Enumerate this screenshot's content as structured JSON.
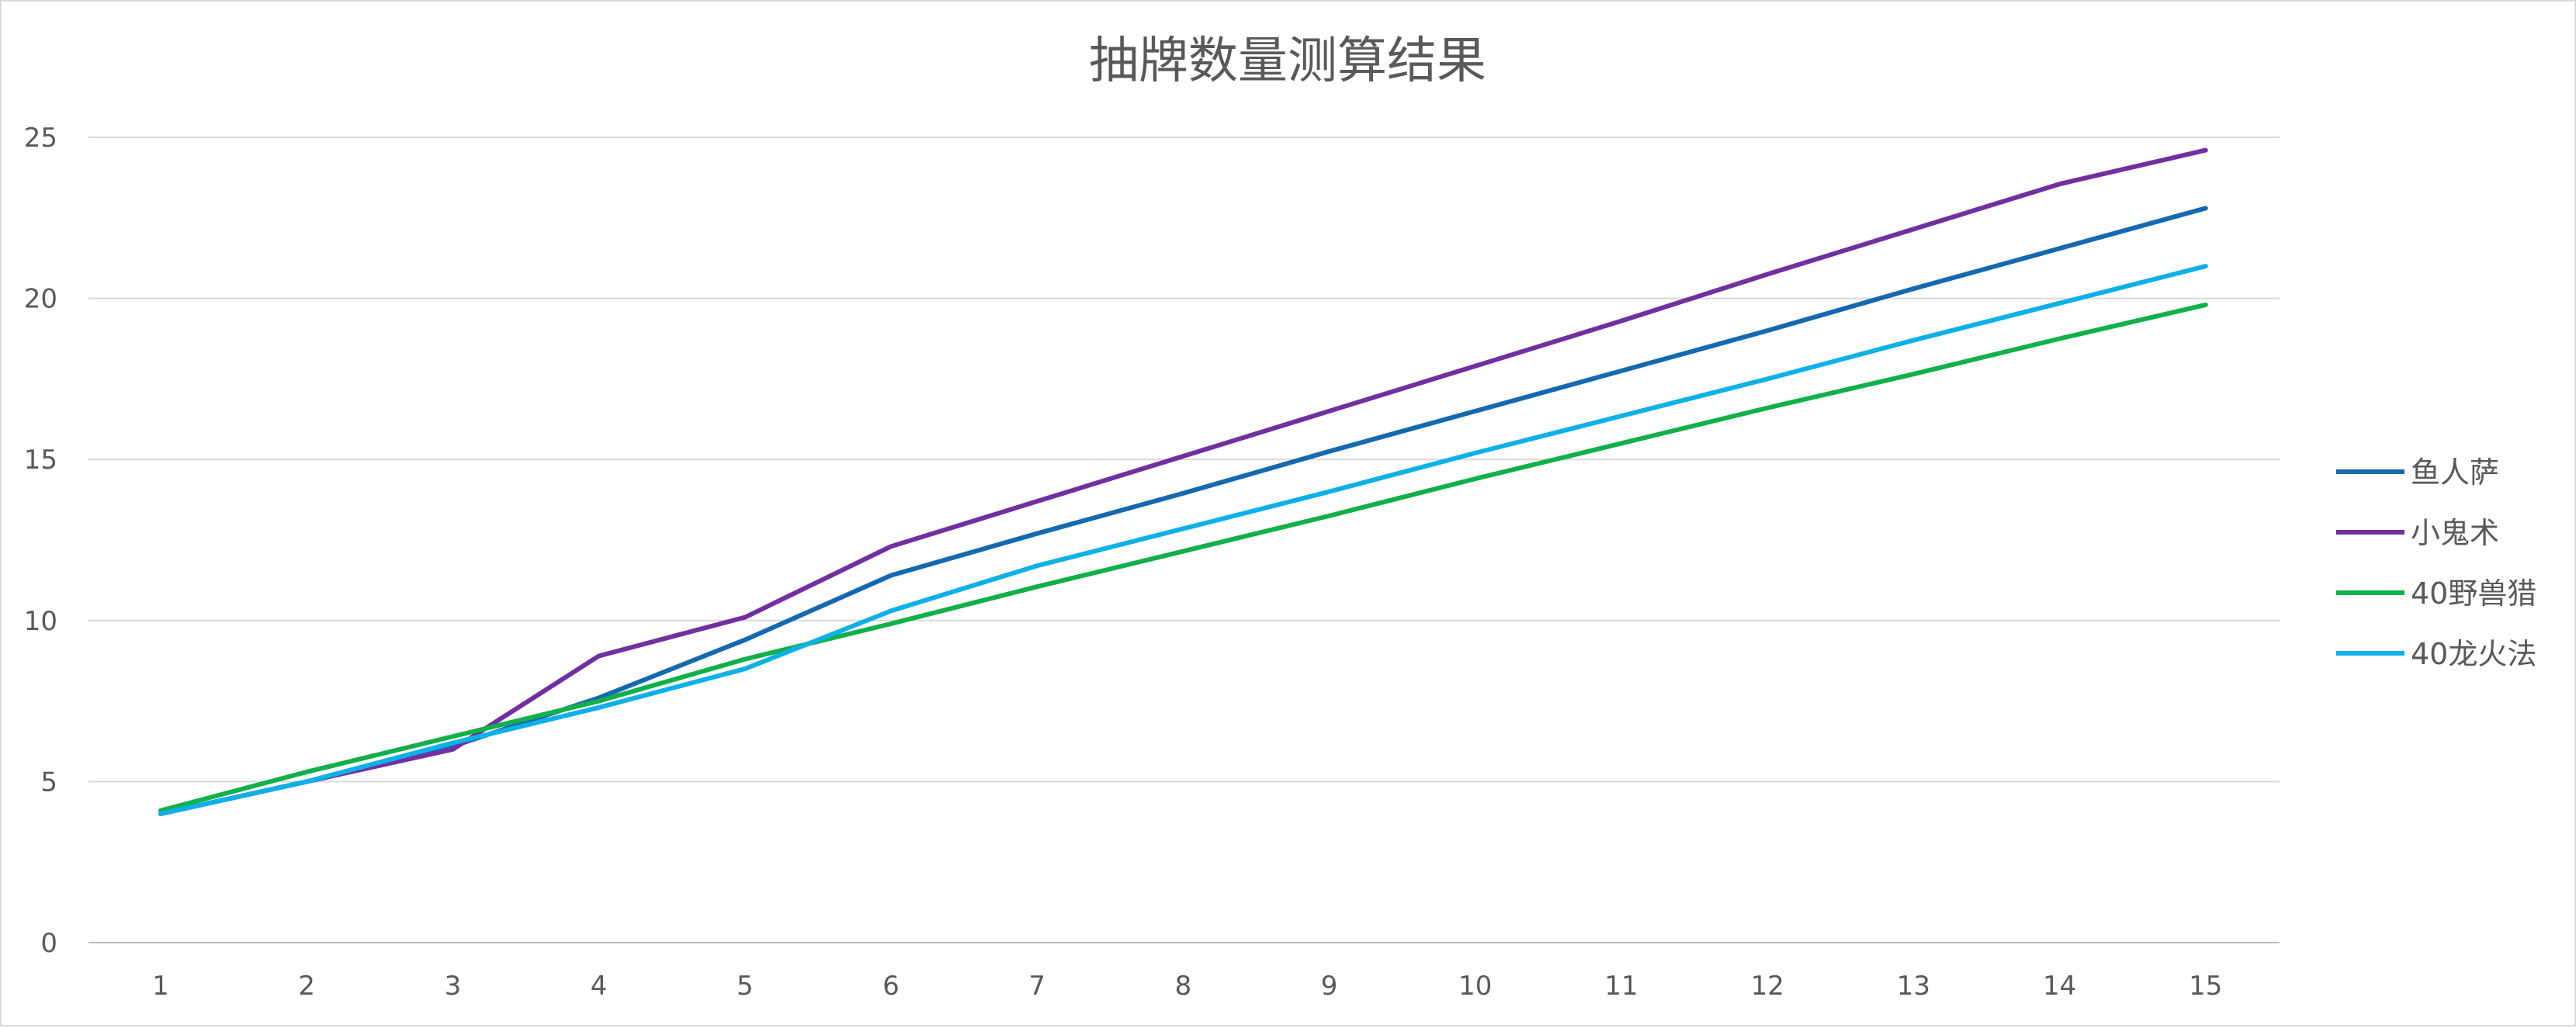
{
  "chart_data": {
    "type": "line",
    "title": "抽牌数量测算结果",
    "xlabel": "",
    "ylabel": "",
    "x": [
      1,
      2,
      3,
      4,
      5,
      6,
      7,
      8,
      9,
      10,
      11,
      12,
      13,
      14,
      15
    ],
    "ylim": [
      0,
      25
    ],
    "yticks": [
      0,
      5,
      10,
      15,
      20,
      25
    ],
    "grid": true,
    "legend_position": "right",
    "series": [
      {
        "name": "鱼人萨",
        "color": "#1469b0",
        "values": [
          4.0,
          5.0,
          6.1,
          7.6,
          9.4,
          11.4,
          12.7,
          13.95,
          15.25,
          16.5,
          17.75,
          19.0,
          20.3,
          21.55,
          22.8
        ]
      },
      {
        "name": "小鬼术",
        "color": "#7030a0",
        "values": [
          4.0,
          5.0,
          6.0,
          8.9,
          10.1,
          12.3,
          13.7,
          15.1,
          16.5,
          17.9,
          19.3,
          20.75,
          22.15,
          23.55,
          24.6
        ]
      },
      {
        "name": "40野兽猎",
        "color": "#12b04a",
        "values": [
          4.1,
          5.3,
          6.4,
          7.5,
          8.8,
          9.9,
          11.05,
          12.15,
          13.25,
          14.4,
          15.5,
          16.6,
          17.65,
          18.75,
          19.8
        ]
      },
      {
        "name": "40龙火法",
        "color": "#0eb0e8",
        "values": [
          4.0,
          5.0,
          6.2,
          7.3,
          8.5,
          10.3,
          11.7,
          12.85,
          14.0,
          15.2,
          16.35,
          17.5,
          18.7,
          19.85,
          21.0
        ]
      }
    ]
  }
}
